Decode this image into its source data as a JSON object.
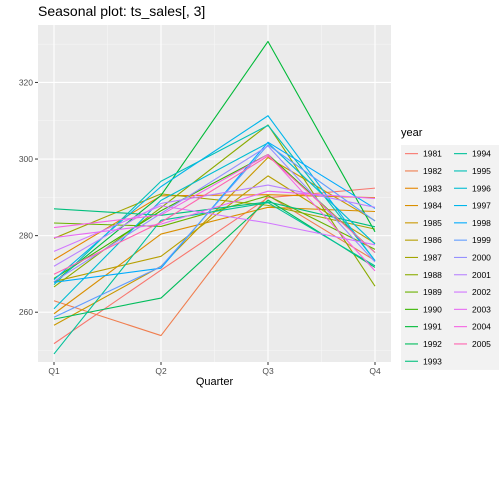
{
  "chart_data": {
    "type": "line",
    "title": "Seasonal plot: ts_sales[, 3]",
    "xlabel": "Quarter",
    "ylabel": "",
    "categories": [
      "Q1",
      "Q2",
      "Q3",
      "Q4"
    ],
    "yticks": [
      260,
      280,
      300,
      320
    ],
    "ylim": [
      247,
      335
    ],
    "grid": true,
    "legend": {
      "title": "year",
      "position": "right",
      "columns": 2
    },
    "series": [
      {
        "name": "1981",
        "color": "#F8766D",
        "values": [
          251.8,
          271.0,
          289.9,
          292.4
        ]
      },
      {
        "name": "1982",
        "color": "#F07E4F",
        "values": [
          263.0,
          253.9,
          290.5,
          273.5
        ]
      },
      {
        "name": "1983",
        "color": "#E58700",
        "values": [
          273.7,
          290.4,
          290.7,
          289.9
        ]
      },
      {
        "name": "1984",
        "color": "#D98F00",
        "values": [
          259.6,
          280.4,
          287.4,
          286.3
        ]
      },
      {
        "name": "1985",
        "color": "#C99800",
        "values": [
          256.6,
          272.0,
          300.4,
          283.9
        ]
      },
      {
        "name": "1986",
        "color": "#B79F00",
        "values": [
          268.0,
          274.6,
          295.6,
          278.0
        ]
      },
      {
        "name": "1987",
        "color": "#A3A500",
        "values": [
          279.3,
          290.9,
          287.9,
          281.7
        ]
      },
      {
        "name": "1988",
        "color": "#8AAB00",
        "values": [
          266.6,
          287.3,
          308.9,
          266.8
        ]
      },
      {
        "name": "1989",
        "color": "#6BB100",
        "values": [
          283.3,
          282.4,
          290.4,
          276.4
        ]
      },
      {
        "name": "1990",
        "color": "#39B600",
        "values": [
          268.8,
          286.5,
          301.2,
          275.6
        ]
      },
      {
        "name": "1991",
        "color": "#00BA38",
        "values": [
          267.8,
          290.5,
          330.7,
          281.0
        ]
      },
      {
        "name": "1992",
        "color": "#00BD5C",
        "values": [
          258.2,
          263.7,
          289.3,
          271.7
        ]
      },
      {
        "name": "1993",
        "color": "#00BF7D",
        "values": [
          287.0,
          285.3,
          288.8,
          282.3
        ]
      },
      {
        "name": "1994",
        "color": "#00C19A",
        "values": [
          249.1,
          284.0,
          288.6,
          272.1
        ]
      },
      {
        "name": "1995",
        "color": "#00C0B7",
        "values": [
          267.2,
          294.2,
          308.8,
          273.5
        ]
      },
      {
        "name": "1996",
        "color": "#00BCD3",
        "values": [
          260.9,
          289.2,
          304.2,
          277.8
        ]
      },
      {
        "name": "1997",
        "color": "#00B6EB",
        "values": [
          268.5,
          292.8,
          311.3,
          273.4
        ]
      },
      {
        "name": "1998",
        "color": "#00ABFD",
        "values": [
          267.8,
          271.5,
          304.4,
          287.1
        ]
      },
      {
        "name": "1999",
        "color": "#619CFF",
        "values": [
          258.7,
          271.9,
          303.7,
          283.8
        ]
      },
      {
        "name": "2000",
        "color": "#9590FF",
        "values": [
          268.0,
          285.8,
          303.4,
          273.1
        ]
      },
      {
        "name": "2001",
        "color": "#B983FF",
        "values": [
          272.0,
          288.4,
          293.2,
          287.4
        ]
      },
      {
        "name": "2002",
        "color": "#D277FF",
        "values": [
          275.9,
          287.8,
          283.3,
          277.6
        ]
      },
      {
        "name": "2003",
        "color": "#E76BF3",
        "values": [
          279.5,
          283.0,
          291.6,
          289.7
        ]
      },
      {
        "name": "2004",
        "color": "#F564E3",
        "values": [
          282.1,
          285.4,
          301.2,
          270.8
        ]
      },
      {
        "name": "2005",
        "color": "#FF64B0",
        "values": [
          269.9,
          283.5,
          300.8,
          275.6
        ]
      }
    ]
  }
}
